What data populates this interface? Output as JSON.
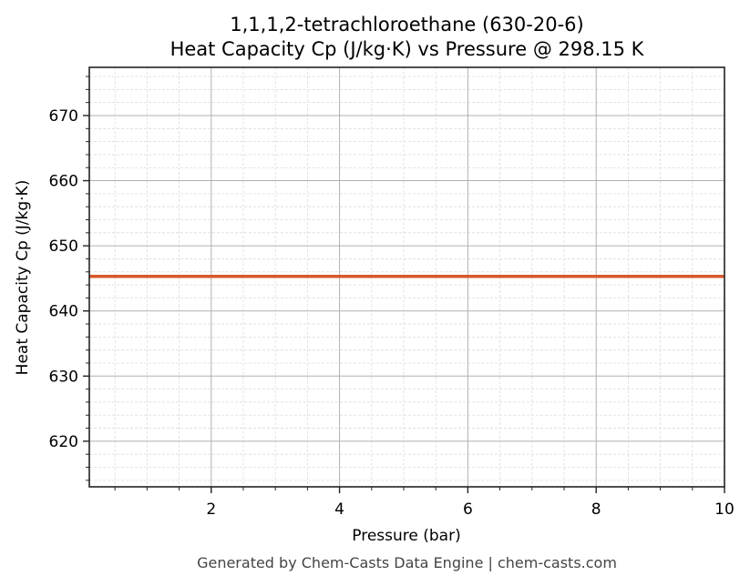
{
  "chart": {
    "title_line1": "1,1,1,2-tetrachloroethane (630-20-6)",
    "title_line2": "Heat Capacity Cp (J/kg·K) vs Pressure @ 298.15 K",
    "xlabel": "Pressure (bar)",
    "ylabel": "Heat Capacity Cp (J/kg·K)",
    "footer": "Generated by Chem-Casts Data Engine | chem-casts.com",
    "line_color": "#d9572a",
    "xticks": [
      "2",
      "4",
      "6",
      "8",
      "10"
    ],
    "yticks": [
      "620",
      "630",
      "640",
      "650",
      "660",
      "670"
    ]
  },
  "chart_data": {
    "type": "line",
    "title": "1,1,1,2-tetrachloroethane (630-20-6) Heat Capacity Cp (J/kg·K) vs Pressure @ 298.15 K",
    "xlabel": "Pressure (bar)",
    "ylabel": "Heat Capacity Cp (J/kg·K)",
    "xlim": [
      0.1,
      10
    ],
    "ylim": [
      613,
      677.4
    ],
    "grid": true,
    "series": [
      {
        "name": "Cp",
        "color": "#d9572a",
        "x": [
          0.1,
          1,
          2,
          3,
          4,
          5,
          6,
          7,
          8,
          9,
          10
        ],
        "y": [
          645.3,
          645.3,
          645.3,
          645.3,
          645.3,
          645.3,
          645.3,
          645.3,
          645.3,
          645.3,
          645.3
        ]
      }
    ],
    "xticks": [
      2,
      4,
      6,
      8,
      10
    ],
    "yticks": [
      620,
      630,
      640,
      650,
      660,
      670
    ]
  }
}
